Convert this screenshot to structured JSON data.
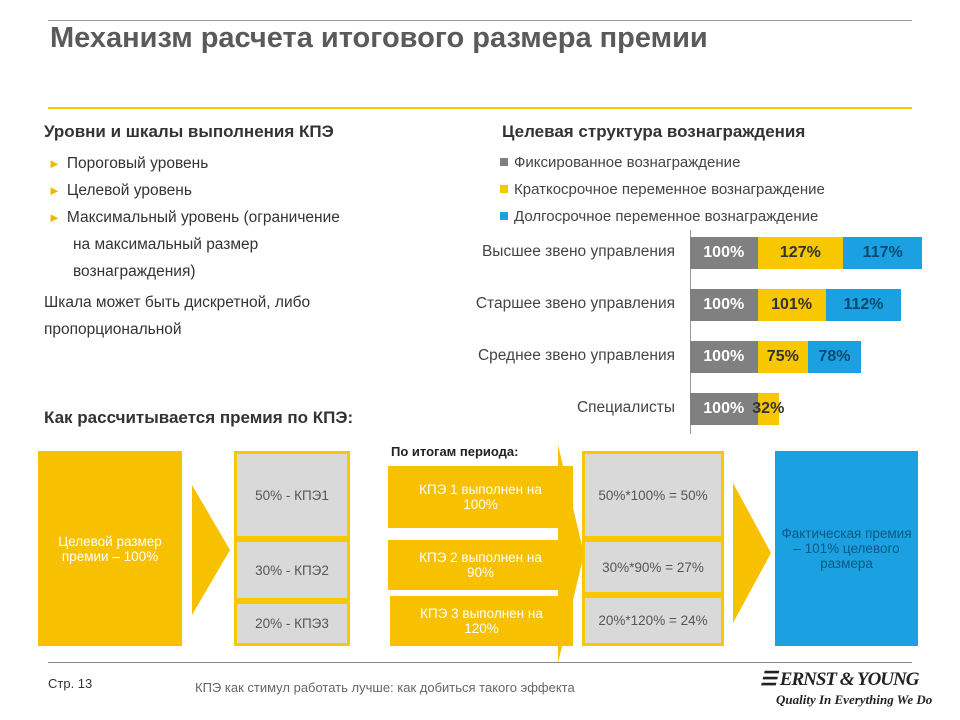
{
  "title": "Механизм расчета итогового размера премии",
  "left": {
    "heading": "Уровни и шкалы выполнения КПЭ",
    "bullets": [
      "Пороговый уровень",
      "Целевой уровень",
      "Максимальный уровень (ограничение",
      "на максимальный размер",
      "вознаграждения)"
    ],
    "note_lines": [
      "Шкала может быть дискретной, либо",
      "пропорциональной"
    ]
  },
  "right": {
    "heading": "Целевая структура вознаграждения"
  },
  "chart_data": {
    "type": "bar",
    "stacked": true,
    "orientation": "horizontal",
    "categories": [
      "Высшее звено управления",
      "Старшее звено управления",
      "Среднее звено управления",
      "Специалисты"
    ],
    "series": [
      {
        "name": "Фиксированное вознаграждение",
        "color": "#808080",
        "values": [
          100,
          100,
          100,
          100
        ],
        "labels": [
          "100%",
          "100%",
          "100%",
          "100%"
        ]
      },
      {
        "name": "Краткосрочное переменное вознаграждение",
        "color": "#f7c700",
        "values": [
          127,
          101,
          75,
          32
        ],
        "labels": [
          "127%",
          "101%",
          "75%",
          "32%"
        ]
      },
      {
        "name": "Долгосрочное переменное вознаграждение",
        "color": "#1ba1e2",
        "values": [
          117,
          112,
          78,
          0
        ],
        "labels": [
          "117%",
          "112%",
          "78%",
          ""
        ]
      }
    ],
    "legend": "top"
  },
  "calc": {
    "heading": "Как рассчитывается премия по КПЭ:",
    "target": "Целевой размер премии – 100%",
    "weights": [
      "50% - КПЭ1",
      "30% - КПЭ2",
      "20% - КПЭ3"
    ],
    "period_label": "По итогам периода:",
    "results": [
      "КПЭ 1 выполнен на 100%",
      "КПЭ 2 выполнен на 90%",
      "КПЭ 3 выполнен на 120%"
    ],
    "products": [
      "50%*100% = 50%",
      "30%*90% = 27%",
      "20%*120% = 24%"
    ],
    "actual": "Фактическая премия – 101% целевого размера",
    "colors": {
      "yellow": "#f7c000",
      "blue": "#1ba1e2",
      "gray": "#d9d9d9"
    }
  },
  "footer": {
    "page": "Стр. 13",
    "caption": "КПЭ как стимул работать лучше: как добиться такого эффекта",
    "logo": "ERNST & YOUNG",
    "tagline": "Quality In Everything We Do"
  }
}
